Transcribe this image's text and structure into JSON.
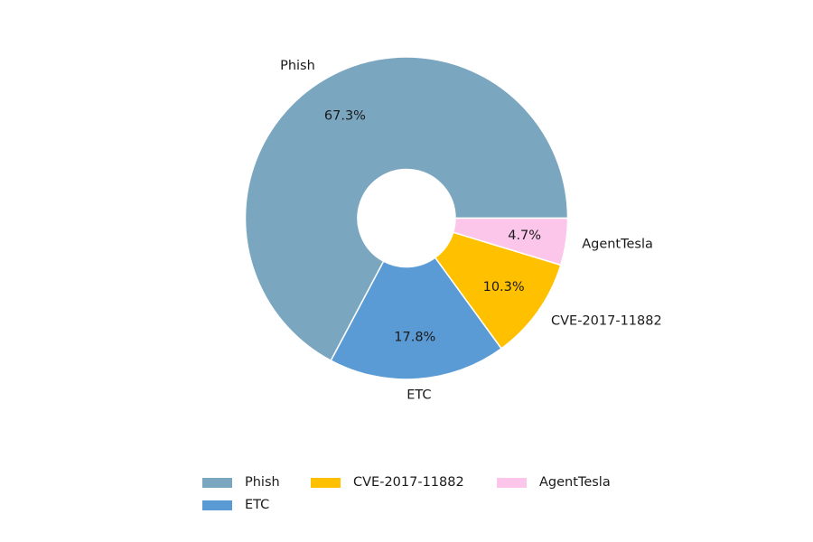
{
  "chart_data": {
    "type": "pie",
    "donut": true,
    "labels": [
      "Phish",
      "ETC",
      "CVE-2017-11882",
      "AgentTesla"
    ],
    "values": [
      67.3,
      17.8,
      10.3,
      4.7
    ],
    "percent_labels": [
      "67.3%",
      "17.8%",
      "10.3%",
      "4.7%"
    ],
    "colors": [
      "#7aa6c0",
      "#5b9bd5",
      "#ffc000",
      "#fcc6ea"
    ],
    "legend": {
      "placement": "bottom-center",
      "columns": 3,
      "entries": [
        "Phish",
        "ETC",
        "CVE-2017-11882",
        "AgentTesla"
      ]
    }
  }
}
